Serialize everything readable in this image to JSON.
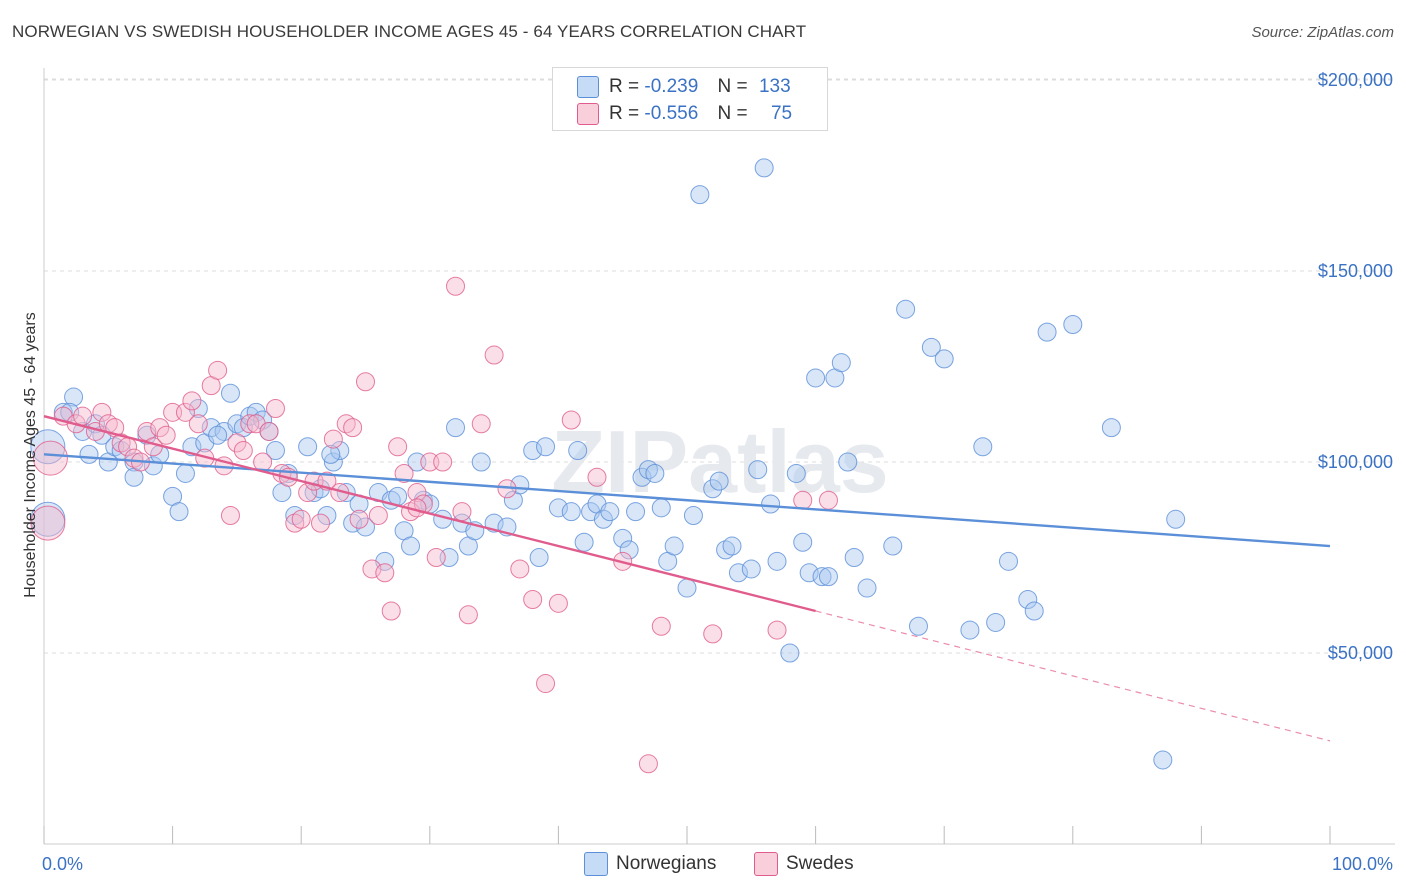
{
  "header": {
    "title": "NORWEGIAN VS SWEDISH HOUSEHOLDER INCOME AGES 45 - 64 YEARS CORRELATION CHART",
    "source": "Source: ZipAtlas.com"
  },
  "legend": {
    "rows": [
      {
        "r_label": "R =",
        "r_value": "-0.239",
        "n_label": "N =",
        "n_value": "133",
        "color": "#a8c8f0"
      },
      {
        "r_label": "R =",
        "r_value": "-0.556",
        "n_label": "N =",
        "n_value": "75",
        "color": "#f6b8cc"
      }
    ]
  },
  "bottom_legend": {
    "items": [
      {
        "label": "Norwegians",
        "color": "#a8c8f0"
      },
      {
        "label": "Swedes",
        "color": "#f6b8cc"
      }
    ]
  },
  "chart_data": {
    "type": "scatter",
    "title": "NORWEGIAN VS SWEDISH HOUSEHOLDER INCOME AGES 45 - 64 YEARS CORRELATION CHART",
    "ylabel": "Householder Income Ages 45 - 64 years",
    "xlabel": "",
    "xlim": [
      0,
      100
    ],
    "ylim": [
      0,
      205000
    ],
    "x_tick_labels": [
      "0.0%",
      "100.0%"
    ],
    "y_ticks": [
      50000,
      100000,
      150000,
      200000
    ],
    "y_tick_labels": [
      "$50,000",
      "$100,000",
      "$150,000",
      "$200,000"
    ],
    "grid": "horizontal dashed",
    "watermark": "ZIPatlas",
    "series": [
      {
        "name": "Norwegians",
        "color": "#5b8fd8",
        "fill": "#a8c8f0",
        "r": -0.239,
        "n": 133,
        "trend": {
          "x": [
            0,
            100
          ],
          "y": [
            102000,
            78000
          ]
        },
        "points": [
          [
            0.3,
            85000
          ],
          [
            0.3,
            104000
          ],
          [
            1.5,
            113000
          ],
          [
            2.3,
            117000
          ],
          [
            2.0,
            113000
          ],
          [
            3.0,
            108000
          ],
          [
            3.5,
            102000
          ],
          [
            4.0,
            110000
          ],
          [
            4.5,
            107000
          ],
          [
            5.0,
            100000
          ],
          [
            5.5,
            104000
          ],
          [
            6.0,
            103000
          ],
          [
            7.0,
            100000
          ],
          [
            7.0,
            96000
          ],
          [
            8.0,
            107000
          ],
          [
            8.5,
            99000
          ],
          [
            9.0,
            102000
          ],
          [
            10.0,
            91000
          ],
          [
            10.5,
            87000
          ],
          [
            11.0,
            97000
          ],
          [
            11.5,
            104000
          ],
          [
            12.0,
            114000
          ],
          [
            12.5,
            105000
          ],
          [
            13.0,
            109000
          ],
          [
            14.0,
            108000
          ],
          [
            14.5,
            118000
          ],
          [
            15.0,
            110000
          ],
          [
            15.5,
            109000
          ],
          [
            16.0,
            112000
          ],
          [
            16.5,
            113000
          ],
          [
            17.0,
            111000
          ],
          [
            17.5,
            108000
          ],
          [
            18.0,
            103000
          ],
          [
            18.5,
            92000
          ],
          [
            19.0,
            97000
          ],
          [
            19.5,
            86000
          ],
          [
            20.5,
            104000
          ],
          [
            21.0,
            92000
          ],
          [
            21.5,
            93000
          ],
          [
            22.0,
            86000
          ],
          [
            22.5,
            100000
          ],
          [
            23.0,
            103000
          ],
          [
            23.5,
            92000
          ],
          [
            24.0,
            84000
          ],
          [
            24.5,
            89000
          ],
          [
            25.0,
            83000
          ],
          [
            26.0,
            92000
          ],
          [
            26.5,
            74000
          ],
          [
            27.0,
            90000
          ],
          [
            27.5,
            91000
          ],
          [
            28.0,
            82000
          ],
          [
            28.5,
            78000
          ],
          [
            29.0,
            100000
          ],
          [
            29.5,
            90000
          ],
          [
            30.0,
            89000
          ],
          [
            31.0,
            85000
          ],
          [
            31.5,
            75000
          ],
          [
            32.0,
            109000
          ],
          [
            32.5,
            84000
          ],
          [
            33.0,
            78000
          ],
          [
            33.5,
            82000
          ],
          [
            34.0,
            100000
          ],
          [
            35.0,
            84000
          ],
          [
            36.0,
            83000
          ],
          [
            36.5,
            90000
          ],
          [
            37.0,
            94000
          ],
          [
            38.0,
            103000
          ],
          [
            38.5,
            75000
          ],
          [
            39.0,
            104000
          ],
          [
            40.0,
            88000
          ],
          [
            41.0,
            87000
          ],
          [
            41.5,
            103000
          ],
          [
            42.0,
            79000
          ],
          [
            42.5,
            87000
          ],
          [
            43.0,
            89000
          ],
          [
            43.5,
            85000
          ],
          [
            44.0,
            87000
          ],
          [
            45.0,
            80000
          ],
          [
            45.5,
            77000
          ],
          [
            46.0,
            87000
          ],
          [
            46.5,
            96000
          ],
          [
            47.0,
            98000
          ],
          [
            47.5,
            97000
          ],
          [
            48.0,
            88000
          ],
          [
            48.5,
            74000
          ],
          [
            49.0,
            78000
          ],
          [
            50.0,
            67000
          ],
          [
            50.5,
            86000
          ],
          [
            51.0,
            170000
          ],
          [
            52.0,
            93000
          ],
          [
            52.5,
            95000
          ],
          [
            53.0,
            77000
          ],
          [
            53.5,
            78000
          ],
          [
            54.0,
            71000
          ],
          [
            55.0,
            72000
          ],
          [
            55.5,
            98000
          ],
          [
            56.0,
            177000
          ],
          [
            56.5,
            89000
          ],
          [
            57.0,
            74000
          ],
          [
            58.0,
            50000
          ],
          [
            58.5,
            97000
          ],
          [
            59.0,
            79000
          ],
          [
            59.5,
            71000
          ],
          [
            60.0,
            122000
          ],
          [
            60.5,
            70000
          ],
          [
            61.0,
            70000
          ],
          [
            61.5,
            122000
          ],
          [
            62.0,
            126000
          ],
          [
            62.5,
            100000
          ],
          [
            63.0,
            75000
          ],
          [
            64.0,
            67000
          ],
          [
            66.0,
            78000
          ],
          [
            67.0,
            140000
          ],
          [
            68.0,
            57000
          ],
          [
            69.0,
            130000
          ],
          [
            70.0,
            127000
          ],
          [
            72.0,
            56000
          ],
          [
            73.0,
            104000
          ],
          [
            74.0,
            58000
          ],
          [
            75.0,
            74000
          ],
          [
            76.5,
            64000
          ],
          [
            77.0,
            61000
          ],
          [
            78.0,
            134000
          ],
          [
            80.0,
            136000
          ],
          [
            83.0,
            109000
          ],
          [
            87.0,
            22000
          ],
          [
            88.0,
            85000
          ],
          [
            22.3,
            102000
          ],
          [
            13.5,
            107000
          ]
        ]
      },
      {
        "name": "Swedes",
        "color": "#e05c8c",
        "fill": "#f6b8cc",
        "r": -0.556,
        "n": 75,
        "trend": {
          "x": [
            0,
            60
          ],
          "y": [
            112000,
            61000
          ]
        },
        "trend_ext": {
          "x": [
            60,
            100
          ],
          "y": [
            61000,
            27000
          ]
        },
        "points": [
          [
            0.3,
            84000
          ],
          [
            0.5,
            101000
          ],
          [
            1.5,
            112000
          ],
          [
            2.5,
            110000
          ],
          [
            3.0,
            112000
          ],
          [
            4.0,
            108000
          ],
          [
            4.5,
            113000
          ],
          [
            5.0,
            110000
          ],
          [
            5.5,
            109000
          ],
          [
            6.0,
            105000
          ],
          [
            6.5,
            104000
          ],
          [
            7.0,
            101000
          ],
          [
            7.5,
            100000
          ],
          [
            8.0,
            108000
          ],
          [
            8.5,
            104000
          ],
          [
            9.0,
            109000
          ],
          [
            9.5,
            107000
          ],
          [
            10.0,
            113000
          ],
          [
            11.0,
            113000
          ],
          [
            11.5,
            116000
          ],
          [
            12.0,
            110000
          ],
          [
            12.5,
            101000
          ],
          [
            13.0,
            120000
          ],
          [
            13.5,
            124000
          ],
          [
            14.0,
            99000
          ],
          [
            14.5,
            86000
          ],
          [
            15.0,
            105000
          ],
          [
            15.5,
            103000
          ],
          [
            16.0,
            110000
          ],
          [
            16.5,
            110000
          ],
          [
            17.0,
            100000
          ],
          [
            17.5,
            108000
          ],
          [
            18.0,
            114000
          ],
          [
            18.5,
            97000
          ],
          [
            19.0,
            96000
          ],
          [
            19.5,
            84000
          ],
          [
            20.0,
            85000
          ],
          [
            20.5,
            92000
          ],
          [
            21.0,
            95000
          ],
          [
            21.5,
            84000
          ],
          [
            22.0,
            95000
          ],
          [
            22.5,
            106000
          ],
          [
            23.0,
            92000
          ],
          [
            23.5,
            110000
          ],
          [
            24.0,
            109000
          ],
          [
            24.5,
            85000
          ],
          [
            25.0,
            121000
          ],
          [
            25.5,
            72000
          ],
          [
            26.0,
            86000
          ],
          [
            26.5,
            71000
          ],
          [
            27.0,
            61000
          ],
          [
            27.5,
            104000
          ],
          [
            28.0,
            97000
          ],
          [
            28.5,
            87000
          ],
          [
            29.0,
            92000
          ],
          [
            29.5,
            89000
          ],
          [
            30.0,
            100000
          ],
          [
            30.5,
            75000
          ],
          [
            31.0,
            100000
          ],
          [
            32.0,
            146000
          ],
          [
            32.5,
            87000
          ],
          [
            33.0,
            60000
          ],
          [
            34.0,
            110000
          ],
          [
            35.0,
            128000
          ],
          [
            36.0,
            93000
          ],
          [
            37.0,
            72000
          ],
          [
            38.0,
            64000
          ],
          [
            39.0,
            42000
          ],
          [
            40.0,
            63000
          ],
          [
            41.0,
            111000
          ],
          [
            43.0,
            96000
          ],
          [
            45.0,
            74000
          ],
          [
            47.0,
            21000
          ],
          [
            48.0,
            57000
          ],
          [
            52.0,
            55000
          ],
          [
            57.0,
            56000
          ],
          [
            59.0,
            90000
          ],
          [
            61.0,
            90000
          ],
          [
            29.0,
            88000
          ]
        ]
      }
    ]
  }
}
